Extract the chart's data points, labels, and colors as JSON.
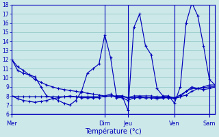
{
  "background_color": "#cce8e8",
  "grid_color": "#99cccc",
  "line_color": "#0000bb",
  "xlabel": "Température (°c)",
  "y_min": 6,
  "y_max": 18,
  "day_labels": [
    "Mer",
    "Dim",
    "Jeu",
    "Ven",
    "Sam"
  ],
  "day_x": [
    0,
    16,
    20,
    28,
    34
  ],
  "series": [
    [
      12.0,
      10.8,
      10.5,
      10.3,
      10.1,
      9.0,
      8.0,
      7.8,
      7.5,
      7.2,
      7.0,
      7.5,
      8.5,
      10.5,
      11.0,
      11.5,
      14.7,
      12.2,
      8.0,
      8.0,
      6.4,
      15.5,
      17.0,
      13.5,
      12.5,
      8.8,
      8.0,
      8.0,
      7.2,
      9.0,
      16.0,
      18.2,
      16.8,
      13.5,
      9.8,
      9.2
    ],
    [
      8.0,
      7.9,
      7.9,
      7.9,
      7.9,
      7.9,
      7.9,
      7.9,
      7.9,
      7.9,
      7.9,
      7.9,
      7.9,
      7.9,
      7.9,
      7.9,
      7.9,
      8.0,
      8.0,
      8.0,
      7.8,
      8.0,
      8.0,
      8.0,
      8.0,
      7.9,
      7.9,
      7.9,
      7.8,
      8.1,
      8.5,
      8.8,
      8.8,
      8.9,
      9.0,
      9.0
    ],
    [
      8.0,
      7.7,
      7.5,
      7.4,
      7.3,
      7.4,
      7.5,
      7.7,
      7.8,
      7.9,
      8.0,
      7.9,
      7.8,
      7.8,
      7.8,
      7.8,
      8.0,
      8.2,
      7.8,
      7.8,
      7.5,
      7.8,
      7.9,
      7.8,
      7.8,
      7.7,
      7.8,
      7.8,
      7.7,
      7.9,
      8.5,
      9.0,
      8.8,
      8.7,
      8.8,
      9.0
    ],
    [
      12.0,
      11.2,
      10.8,
      10.3,
      9.8,
      9.5,
      9.2,
      9.0,
      8.8,
      8.7,
      8.6,
      8.5,
      8.4,
      8.3,
      8.2,
      8.1,
      8.0,
      8.0,
      7.9,
      7.9,
      7.8,
      7.8,
      7.8,
      7.8,
      7.8,
      7.8,
      7.8,
      7.8,
      7.8,
      7.9,
      8.1,
      8.5,
      8.8,
      9.0,
      9.2,
      9.2
    ]
  ],
  "n_points": 36
}
